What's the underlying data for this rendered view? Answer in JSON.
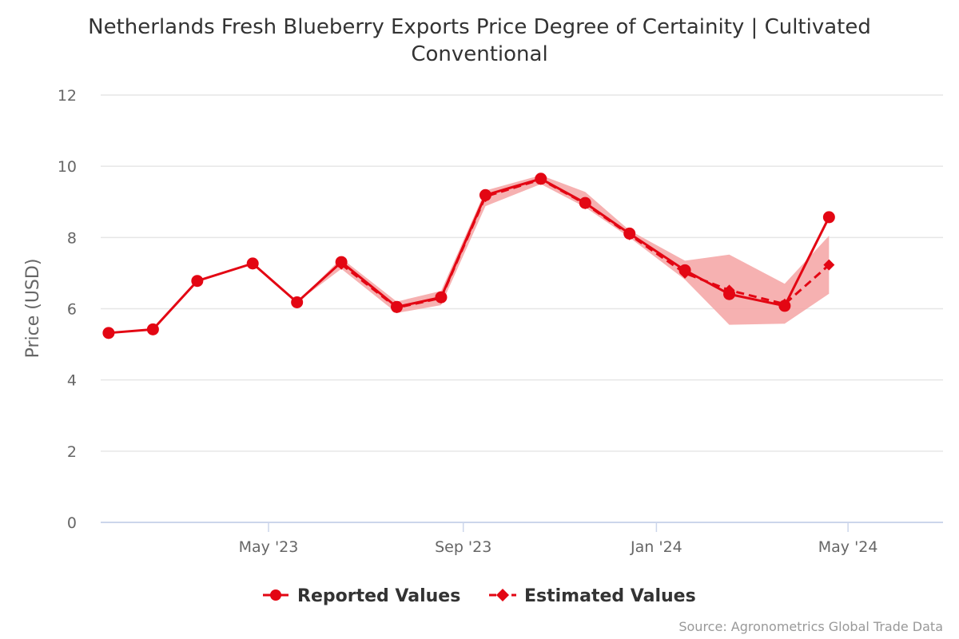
{
  "chart_data": {
    "type": "line",
    "title_line1": "Netherlands Fresh Blueberry Exports Price Degree of Certainity | Cultivated",
    "title_line2": "Conventional",
    "ylabel": "Price (USD)",
    "ylim": [
      0,
      12
    ],
    "yticks": [
      0,
      2,
      4,
      6,
      8,
      10,
      12
    ],
    "xlim": [
      "2023-01-15",
      "2024-06-30"
    ],
    "xticks": [
      {
        "date": "2023-05-01",
        "label": "May '23"
      },
      {
        "date": "2023-09-01",
        "label": "Sep '23"
      },
      {
        "date": "2024-01-01",
        "label": "Jan '24"
      },
      {
        "date": "2024-05-01",
        "label": "May '24"
      }
    ],
    "grid": true,
    "legend_position": "bottom-center",
    "colors": {
      "line": "#e30613",
      "band": "#f4a3a3",
      "grid": "#e6e6e6",
      "axis": "#ccd6eb"
    },
    "series": [
      {
        "name": "Reported Values",
        "marker": "circle",
        "dash": "solid",
        "points": [
          {
            "x": "2023-01-20",
            "y": 5.32
          },
          {
            "x": "2023-02-17",
            "y": 5.42
          },
          {
            "x": "2023-03-17",
            "y": 6.78
          },
          {
            "x": "2023-04-21",
            "y": 7.27
          },
          {
            "x": "2023-05-19",
            "y": 6.18
          },
          {
            "x": "2023-06-16",
            "y": 7.31
          },
          {
            "x": "2023-07-21",
            "y": 6.05
          },
          {
            "x": "2023-08-18",
            "y": 6.32
          },
          {
            "x": "2023-09-15",
            "y": 9.19
          },
          {
            "x": "2023-10-20",
            "y": 9.65
          },
          {
            "x": "2023-11-17",
            "y": 8.97
          },
          {
            "x": "2023-12-15",
            "y": 8.11
          },
          {
            "x": "2024-01-19",
            "y": 7.08
          },
          {
            "x": "2024-02-16",
            "y": 6.41
          },
          {
            "x": "2024-03-22",
            "y": 6.08
          },
          {
            "x": "2024-04-19",
            "y": 8.57
          }
        ]
      },
      {
        "name": "Estimated Values",
        "marker": "diamond",
        "dash": "dashed",
        "points": [
          {
            "x": "2023-06-16",
            "y": 7.25
          },
          {
            "x": "2023-07-21",
            "y": 6.03
          },
          {
            "x": "2023-08-18",
            "y": 6.3
          },
          {
            "x": "2023-09-15",
            "y": 9.15
          },
          {
            "x": "2023-10-20",
            "y": 9.63
          },
          {
            "x": "2023-11-17",
            "y": 8.95
          },
          {
            "x": "2023-12-15",
            "y": 8.08
          },
          {
            "x": "2024-01-19",
            "y": 7.0
          },
          {
            "x": "2024-02-16",
            "y": 6.52
          },
          {
            "x": "2024-03-22",
            "y": 6.13
          },
          {
            "x": "2024-04-19",
            "y": 7.23
          }
        ]
      }
    ],
    "band": [
      {
        "x": "2023-05-19",
        "low": 6.18,
        "high": 6.18
      },
      {
        "x": "2023-06-16",
        "low": 7.12,
        "high": 7.42
      },
      {
        "x": "2023-07-21",
        "low": 5.88,
        "high": 6.2
      },
      {
        "x": "2023-08-18",
        "low": 6.1,
        "high": 6.5
      },
      {
        "x": "2023-09-15",
        "low": 8.88,
        "high": 9.32
      },
      {
        "x": "2023-10-20",
        "low": 9.5,
        "high": 9.75
      },
      {
        "x": "2023-11-17",
        "low": 8.85,
        "high": 9.28
      },
      {
        "x": "2023-12-15",
        "low": 8.0,
        "high": 8.2
      },
      {
        "x": "2024-01-19",
        "low": 6.82,
        "high": 7.35
      },
      {
        "x": "2024-02-16",
        "low": 5.55,
        "high": 7.52
      },
      {
        "x": "2024-03-22",
        "low": 5.58,
        "high": 6.7
      },
      {
        "x": "2024-04-19",
        "low": 6.42,
        "high": 8.05
      }
    ],
    "source": "Source: Agronometrics Global Trade Data"
  }
}
